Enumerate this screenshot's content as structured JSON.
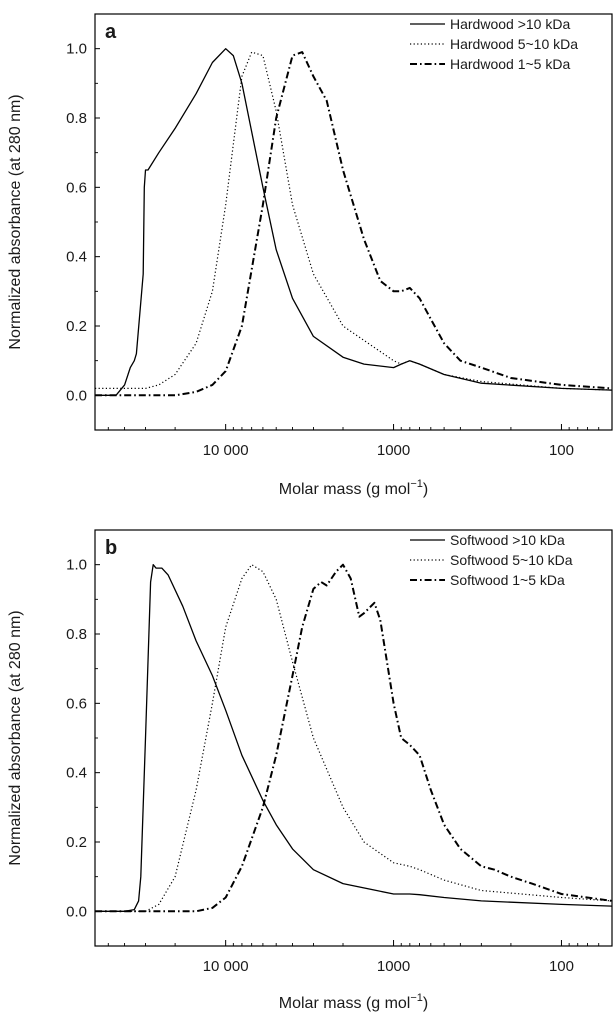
{
  "figure": {
    "panels": [
      {
        "panel_label": "a",
        "xlabel_main": "Molar mass (g mol",
        "xlabel_sup": "−1",
        "xlabel_end": ")",
        "ylabel": "Normalized absorbance (at 280 nm)"
      },
      {
        "panel_label": "b",
        "xlabel_main": "Molar mass (g mol",
        "xlabel_sup": "−1",
        "xlabel_end": ")",
        "ylabel": "Normalized absorbance (at 280 nm)"
      }
    ]
  },
  "chart_data": [
    {
      "type": "line",
      "title": "",
      "panel_label": "a",
      "xlabel": "Molar mass (g mol−1)",
      "ylabel": "Normalized absorbance (at 280 nm)",
      "xscale": "log",
      "x_reversed": true,
      "xlim": [
        60000,
        50
      ],
      "ylim": [
        -0.1,
        1.1
      ],
      "x_ticks": [
        10000,
        1000,
        100
      ],
      "x_tick_labels": [
        "10 000",
        "1000",
        "100"
      ],
      "y_ticks": [
        0.0,
        0.2,
        0.4,
        0.6,
        0.8,
        1.0
      ],
      "y_tick_labels": [
        "0.0",
        "0.2",
        "0.4",
        "0.6",
        "0.8",
        "1.0"
      ],
      "grid": false,
      "legend_position": "top-right",
      "series": [
        {
          "name": "Hardwood >10 kDa",
          "style": "solid",
          "x": [
            60000,
            45000,
            40000,
            37000,
            35000,
            34000,
            31000,
            30500,
            30000,
            29000,
            25000,
            20000,
            15000,
            12000,
            10000,
            9000,
            8000,
            6000,
            5000,
            4000,
            3000,
            2000,
            1500,
            1000,
            900,
            800,
            700,
            500,
            300,
            100,
            50
          ],
          "y": [
            0.0,
            0.0,
            0.03,
            0.08,
            0.1,
            0.12,
            0.35,
            0.6,
            0.65,
            0.65,
            0.7,
            0.77,
            0.87,
            0.96,
            1.0,
            0.98,
            0.9,
            0.6,
            0.42,
            0.28,
            0.17,
            0.11,
            0.09,
            0.08,
            0.09,
            0.1,
            0.09,
            0.06,
            0.035,
            0.02,
            0.015
          ]
        },
        {
          "name": "Hardwood 5~10 kDa",
          "style": "dotted",
          "x": [
            60000,
            30000,
            25000,
            20000,
            15000,
            12000,
            10000,
            8000,
            7000,
            6000,
            5000,
            4000,
            3000,
            2000,
            1000,
            900,
            800,
            700,
            500,
            300,
            100,
            50
          ],
          "y": [
            0.02,
            0.02,
            0.03,
            0.06,
            0.15,
            0.3,
            0.55,
            0.92,
            0.99,
            0.98,
            0.82,
            0.55,
            0.35,
            0.2,
            0.1,
            0.09,
            0.1,
            0.09,
            0.06,
            0.04,
            0.02,
            0.015
          ]
        },
        {
          "name": "Hardwood 1~5 kDa",
          "style": "dashdot",
          "x": [
            60000,
            20000,
            15000,
            12000,
            10000,
            8000,
            6000,
            5000,
            4000,
            3500,
            3000,
            2500,
            2000,
            1500,
            1200,
            1000,
            900,
            800,
            700,
            600,
            500,
            400,
            300,
            200,
            100,
            50
          ],
          "y": [
            0.0,
            0.0,
            0.01,
            0.03,
            0.07,
            0.2,
            0.55,
            0.8,
            0.98,
            0.99,
            0.92,
            0.85,
            0.65,
            0.45,
            0.33,
            0.3,
            0.3,
            0.31,
            0.28,
            0.22,
            0.15,
            0.1,
            0.08,
            0.05,
            0.03,
            0.02
          ]
        }
      ]
    },
    {
      "type": "line",
      "title": "",
      "panel_label": "b",
      "xlabel": "Molar mass (g mol−1)",
      "ylabel": "Normalized absorbance (at 280 nm)",
      "xscale": "log",
      "x_reversed": true,
      "xlim": [
        60000,
        50
      ],
      "ylim": [
        -0.1,
        1.1
      ],
      "x_ticks": [
        10000,
        1000,
        100
      ],
      "x_tick_labels": [
        "10 000",
        "1000",
        "100"
      ],
      "y_ticks": [
        0.0,
        0.2,
        0.4,
        0.6,
        0.8,
        1.0
      ],
      "y_tick_labels": [
        "0.0",
        "0.2",
        "0.4",
        "0.6",
        "0.8",
        "1.0"
      ],
      "grid": false,
      "legend_position": "top-right",
      "series": [
        {
          "name": "Softwood >10 kDa",
          "style": "solid",
          "x": [
            60000,
            40000,
            35000,
            33000,
            32000,
            30000,
            28000,
            27000,
            26000,
            24000,
            22000,
            18000,
            15000,
            12000,
            10000,
            8000,
            6000,
            5000,
            4000,
            3000,
            2000,
            1000,
            800,
            700,
            500,
            300,
            100,
            50
          ],
          "y": [
            0.0,
            0.0,
            0.005,
            0.03,
            0.1,
            0.5,
            0.95,
            1.0,
            0.99,
            0.99,
            0.97,
            0.88,
            0.78,
            0.68,
            0.58,
            0.45,
            0.32,
            0.25,
            0.18,
            0.12,
            0.08,
            0.05,
            0.05,
            0.048,
            0.04,
            0.03,
            0.02,
            0.015
          ]
        },
        {
          "name": "Softwood 5~10 kDa",
          "style": "dotted",
          "x": [
            60000,
            30000,
            25000,
            20000,
            15000,
            12000,
            10000,
            8000,
            7000,
            6000,
            5000,
            4000,
            3000,
            2000,
            1500,
            1000,
            800,
            700,
            500,
            300,
            100,
            50
          ],
          "y": [
            0.0,
            0.0,
            0.02,
            0.1,
            0.35,
            0.6,
            0.82,
            0.96,
            1.0,
            0.98,
            0.9,
            0.72,
            0.5,
            0.3,
            0.2,
            0.14,
            0.13,
            0.12,
            0.09,
            0.06,
            0.04,
            0.03
          ]
        },
        {
          "name": "Softwood 1~5 kDa",
          "style": "dashdot",
          "x": [
            60000,
            15000,
            12000,
            10000,
            8000,
            6000,
            5000,
            4000,
            3500,
            3000,
            2700,
            2500,
            2200,
            2000,
            1800,
            1600,
            1500,
            1300,
            1200,
            1000,
            900,
            800,
            700,
            600,
            500,
            400,
            300,
            250,
            200,
            150,
            100,
            50
          ],
          "y": [
            0.0,
            0.0,
            0.01,
            0.04,
            0.13,
            0.3,
            0.45,
            0.68,
            0.82,
            0.93,
            0.95,
            0.94,
            0.98,
            1.0,
            0.96,
            0.85,
            0.86,
            0.89,
            0.84,
            0.6,
            0.5,
            0.48,
            0.45,
            0.35,
            0.25,
            0.18,
            0.13,
            0.12,
            0.1,
            0.08,
            0.05,
            0.03
          ]
        }
      ]
    }
  ]
}
